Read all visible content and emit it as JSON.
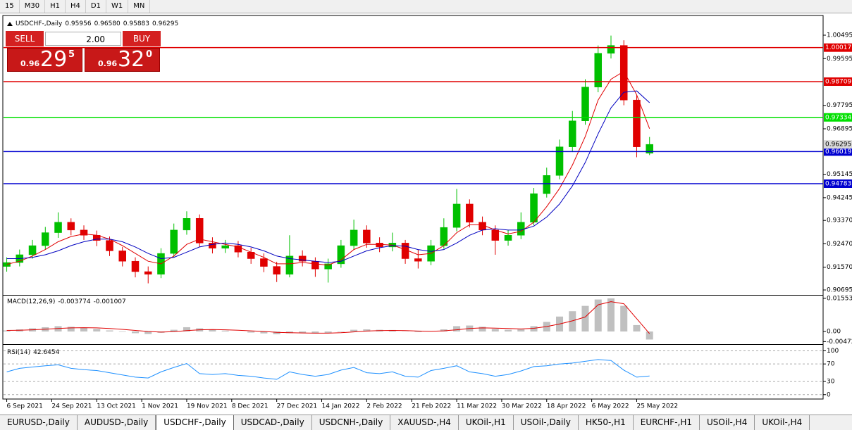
{
  "toolbar": {
    "timeframes": [
      "15",
      "M30",
      "H1",
      "H4",
      "D1",
      "W1",
      "MN"
    ]
  },
  "trade_panel": {
    "sell": "SELL",
    "buy": "BUY",
    "lots": "2.00",
    "sell_price": {
      "big_figure": "0.96",
      "pips": "29",
      "fraction": "5"
    },
    "buy_price": {
      "big_figure": "0.96",
      "pips": "32",
      "fraction": "0"
    }
  },
  "chart_data": [
    {
      "type": "candlestick",
      "title": "USDCHF-,Daily",
      "quote": {
        "open": "0.95956",
        "high": "0.96580",
        "low": "0.95883",
        "close": "0.96295"
      },
      "bull_color": "#00c000",
      "bear_color": "#e00000",
      "xlim": [
        -1,
        254
      ],
      "xticks": [
        {
          "value": 0,
          "label": "6 Sep 2021"
        },
        {
          "value": 14,
          "label": "24 Sep 2021"
        },
        {
          "value": 28,
          "label": "13 Oct 2021"
        },
        {
          "value": 42,
          "label": "1 Nov 2021"
        },
        {
          "value": 56,
          "label": "19 Nov 2021"
        },
        {
          "value": 70,
          "label": "8 Dec 2021"
        },
        {
          "value": 84,
          "label": "27 Dec 2021"
        },
        {
          "value": 98,
          "label": "14 Jan 2022"
        },
        {
          "value": 112,
          "label": "2 Feb 2022"
        },
        {
          "value": 126,
          "label": "21 Feb 2022"
        },
        {
          "value": 140,
          "label": "11 Mar 2022"
        },
        {
          "value": 154,
          "label": "30 Mar 2022"
        },
        {
          "value": 168,
          "label": "18 Apr 2022"
        },
        {
          "value": 182,
          "label": "6 May 2022"
        },
        {
          "value": 196,
          "label": "25 May 2022"
        }
      ],
      "x": [
        0,
        4,
        8,
        12,
        16,
        20,
        24,
        28,
        32,
        36,
        40,
        44,
        48,
        52,
        56,
        60,
        64,
        68,
        72,
        76,
        80,
        84,
        88,
        92,
        96,
        100,
        104,
        108,
        112,
        116,
        120,
        124,
        128,
        132,
        136,
        140,
        144,
        148,
        152,
        156,
        160,
        164,
        168,
        172,
        176,
        180,
        184,
        188,
        192,
        196,
        200
      ],
      "open": [
        0.916,
        0.9175,
        0.9205,
        0.924,
        0.929,
        0.933,
        0.93,
        0.928,
        0.926,
        0.922,
        0.918,
        0.914,
        0.913,
        0.921,
        0.93,
        0.9345,
        0.925,
        0.923,
        0.924,
        0.9215,
        0.919,
        0.916,
        0.913,
        0.92,
        0.918,
        0.915,
        0.917,
        0.924,
        0.93,
        0.925,
        0.9235,
        0.925,
        0.919,
        0.918,
        0.924,
        0.931,
        0.94,
        0.933,
        0.93,
        0.926,
        0.928,
        0.933,
        0.944,
        0.951,
        0.962,
        0.972,
        0.985,
        0.998,
        1.001,
        0.98,
        0.95956
      ],
      "high": [
        0.9195,
        0.9225,
        0.9262,
        0.9312,
        0.9368,
        0.9345,
        0.9318,
        0.9298,
        0.9275,
        0.9235,
        0.9195,
        0.916,
        0.923,
        0.9325,
        0.9372,
        0.936,
        0.9272,
        0.9262,
        0.9258,
        0.9232,
        0.921,
        0.9178,
        0.928,
        0.9222,
        0.9195,
        0.919,
        0.9262,
        0.934,
        0.9318,
        0.9272,
        0.929,
        0.9262,
        0.9225,
        0.9262,
        0.9345,
        0.9458,
        0.9418,
        0.9352,
        0.9318,
        0.93,
        0.9368,
        0.9462,
        0.954,
        0.9648,
        0.9758,
        0.988,
        1.001,
        1.0048,
        1.003,
        0.982,
        0.9658
      ],
      "low": [
        0.914,
        0.916,
        0.919,
        0.9225,
        0.927,
        0.928,
        0.9262,
        0.9238,
        0.92,
        0.916,
        0.9118,
        0.9095,
        0.9115,
        0.9195,
        0.9282,
        0.9235,
        0.921,
        0.9212,
        0.9195,
        0.917,
        0.9138,
        0.91,
        0.9118,
        0.916,
        0.912,
        0.9098,
        0.9155,
        0.9225,
        0.9232,
        0.9215,
        0.9218,
        0.917,
        0.9152,
        0.9165,
        0.9228,
        0.9295,
        0.931,
        0.928,
        0.9205,
        0.924,
        0.9265,
        0.9318,
        0.9425,
        0.9495,
        0.96,
        0.9705,
        0.983,
        0.996,
        0.978,
        0.958,
        0.95883
      ],
      "close": [
        0.9175,
        0.9205,
        0.924,
        0.929,
        0.933,
        0.93,
        0.928,
        0.926,
        0.922,
        0.918,
        0.914,
        0.913,
        0.921,
        0.93,
        0.9345,
        0.925,
        0.923,
        0.924,
        0.9215,
        0.919,
        0.916,
        0.913,
        0.92,
        0.918,
        0.915,
        0.917,
        0.924,
        0.93,
        0.925,
        0.9235,
        0.925,
        0.919,
        0.918,
        0.924,
        0.931,
        0.94,
        0.933,
        0.93,
        0.926,
        0.928,
        0.933,
        0.944,
        0.951,
        0.962,
        0.972,
        0.985,
        0.998,
        1.001,
        0.98,
        0.962,
        0.96295
      ],
      "overlays": [
        {
          "color": "#e00000",
          "values": [
            0.9168,
            0.918,
            0.92,
            0.9225,
            0.9255,
            0.9275,
            0.9285,
            0.928,
            0.9265,
            0.924,
            0.921,
            0.918,
            0.917,
            0.92,
            0.9245,
            0.9265,
            0.9255,
            0.9245,
            0.9235,
            0.9215,
            0.9195,
            0.917,
            0.917,
            0.9175,
            0.917,
            0.9165,
            0.9185,
            0.9225,
            0.9245,
            0.9245,
            0.9242,
            0.9225,
            0.9205,
            0.921,
            0.924,
            0.929,
            0.932,
            0.932,
            0.93,
            0.9285,
            0.9295,
            0.933,
            0.939,
            0.946,
            0.955,
            0.966,
            0.98,
            0.988,
            0.991,
            0.982,
            0.969
          ]
        },
        {
          "color": "#0000c0",
          "values": [
            0.919,
            0.919,
            0.9195,
            0.9205,
            0.922,
            0.924,
            0.9255,
            0.9265,
            0.9265,
            0.9255,
            0.9235,
            0.921,
            0.919,
            0.9195,
            0.9215,
            0.9235,
            0.9245,
            0.925,
            0.9245,
            0.9235,
            0.922,
            0.92,
            0.919,
            0.9185,
            0.918,
            0.9175,
            0.918,
            0.92,
            0.922,
            0.9232,
            0.924,
            0.9238,
            0.9225,
            0.9218,
            0.9225,
            0.925,
            0.928,
            0.93,
            0.9305,
            0.93,
            0.93,
            0.9315,
            0.935,
            0.94,
            0.947,
            0.956,
            0.967,
            0.977,
            0.983,
            0.9835,
            0.979
          ]
        }
      ],
      "levels": [
        {
          "value": 1.00017,
          "color": "#e00000"
        },
        {
          "value": 0.98709,
          "color": "#e00000"
        },
        {
          "value": 0.97334,
          "color": "#00e000"
        },
        {
          "value": 0.96019,
          "color": "#0000d0"
        },
        {
          "value": 0.94783,
          "color": "#0000d0"
        }
      ],
      "ylim": [
        0.90533,
        1.01145
      ],
      "yticks": [
        1.00495,
        0.99595,
        0.97795,
        0.96895,
        0.95145,
        0.94245,
        {
          "value": 0.9337,
          "label": "0.93370"
        },
        {
          "value": 0.9247,
          "label": "0.92470"
        },
        {
          "value": 0.9157,
          "label": "0.91570"
        },
        0.90695
      ],
      "grid": false
    },
    {
      "type": "macd",
      "title": "MACD(12,26,9)",
      "hist_color": "#c0c0c0",
      "signal_color": "#e00000",
      "hist": [
        0.0005,
        0.001,
        0.0015,
        0.002,
        0.0025,
        0.0022,
        0.0018,
        0.0012,
        0.0005,
        -0.0002,
        -0.0008,
        -0.0012,
        -0.0006,
        0.0008,
        0.002,
        0.0015,
        0.0008,
        0.0004,
        0,
        -0.0005,
        -0.0009,
        -0.0013,
        -0.0008,
        -0.0007,
        -0.0009,
        -0.0008,
        -0.0002,
        0.0008,
        0.001,
        0.0008,
        0.0007,
        0.0001,
        -0.0003,
        0,
        0.001,
        0.0025,
        0.0028,
        0.0022,
        0.0012,
        0.0008,
        0.001,
        0.0025,
        0.0045,
        0.007,
        0.0095,
        0.012,
        0.015,
        0.0155,
        0.012,
        0.003,
        -0.003774
      ],
      "signal": [
        0.0005,
        0.0006,
        0.0008,
        0.0011,
        0.0014,
        0.0017,
        0.0018,
        0.0017,
        0.0014,
        0.001,
        0.0005,
        0,
        -0.0003,
        -0.0001,
        0.0004,
        0.0008,
        0.0009,
        0.0008,
        0.0006,
        0.0003,
        0,
        -0.0004,
        -0.0006,
        -0.0007,
        -0.0008,
        -0.0008,
        -0.0006,
        -0.0002,
        0.0002,
        0.0004,
        0.0005,
        0.0004,
        0.0002,
        0.0001,
        0.0003,
        0.0008,
        0.0014,
        0.0017,
        0.0016,
        0.0014,
        0.0012,
        0.0015,
        0.0023,
        0.0035,
        0.005,
        0.0068,
        0.0125,
        0.014,
        0.013,
        0.006,
        -0.001007
      ],
      "ylim": [
        -0.0056,
        0.0165
      ],
      "yticks": [
        0.015533,
        {
          "value": 0,
          "label": "0.00"
        },
        -0.004729
      ],
      "grid": false
    },
    {
      "type": "line",
      "title": "RSI(14)",
      "color": "#1e90ff",
      "values": [
        52,
        60,
        63,
        66,
        68,
        60,
        57,
        55,
        50,
        45,
        40,
        38,
        52,
        62,
        71,
        48,
        46,
        48,
        44,
        42,
        38,
        35,
        52,
        46,
        42,
        46,
        56,
        62,
        50,
        48,
        52,
        42,
        40,
        55,
        60,
        66,
        52,
        48,
        42,
        46,
        54,
        64,
        66,
        70,
        72,
        76,
        80,
        78,
        56,
        40,
        42.6454
      ],
      "ylim": [
        -10,
        112
      ],
      "yticks": [
        100,
        70,
        30,
        0
      ],
      "grid": true
    }
  ],
  "tabs": [
    {
      "label": "EURUSD-,Daily"
    },
    {
      "label": "AUDUSD-,Daily"
    },
    {
      "label": "USDCHF-,Daily",
      "active": true
    },
    {
      "label": "USDCAD-,Daily"
    },
    {
      "label": "USDCNH-,Daily"
    },
    {
      "label": "XAUUSD-,H4"
    },
    {
      "label": "UKOil-,H1"
    },
    {
      "label": "USOil-,Daily"
    },
    {
      "label": "HK50-,H1"
    },
    {
      "label": "EURCHF-,H1"
    },
    {
      "label": "USOil-,H4"
    },
    {
      "label": "UKOil-,H4"
    }
  ]
}
